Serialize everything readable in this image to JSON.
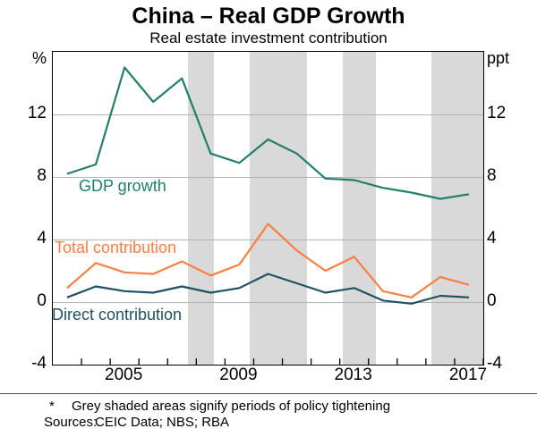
{
  "title": "China – Real GDP Growth",
  "subtitle": "Real estate investment contribution",
  "left_axis_unit": "%",
  "right_axis_unit": "ppt",
  "footnote": {
    "marker": "*",
    "text": "Grey shaded areas signify periods of policy tightening"
  },
  "sources": {
    "label": "Sources:",
    "text": "CEIC Data; NBS; RBA"
  },
  "chart_data": {
    "type": "line",
    "x": [
      2003,
      2004,
      2005,
      2006,
      2007,
      2008,
      2009,
      2010,
      2011,
      2012,
      2013,
      2014,
      2015,
      2016,
      2017
    ],
    "series": [
      {
        "name": "GDP growth",
        "color": "#207e6a",
        "values": [
          8.2,
          8.8,
          15.0,
          12.8,
          14.3,
          9.5,
          8.9,
          10.4,
          9.5,
          7.9,
          7.8,
          7.3,
          7.0,
          6.6,
          6.9
        ],
        "label": {
          "x": 29,
          "y": 140
        }
      },
      {
        "name": "Total contribution",
        "color": "#fb7e42",
        "values": [
          0.9,
          2.5,
          1.9,
          1.8,
          2.6,
          1.7,
          2.4,
          5.0,
          3.3,
          2.0,
          2.9,
          0.7,
          0.3,
          1.6,
          1.1
        ],
        "label": {
          "x": 2,
          "y": 209
        }
      },
      {
        "name": "Direct contribution",
        "color": "#234f63",
        "values": [
          0.3,
          1.0,
          0.7,
          0.6,
          1.0,
          0.6,
          0.9,
          1.8,
          1.2,
          0.6,
          0.9,
          0.1,
          -0.1,
          0.4,
          0.3
        ],
        "label": {
          "x": -1,
          "y": 284
        }
      }
    ],
    "x_range": [
      2002.5,
      2017.5
    ],
    "ylim": [
      -4,
      16
    ],
    "yticks": [
      -4,
      0,
      4,
      8,
      12
    ],
    "gridlines": [
      0,
      4,
      8,
      12
    ],
    "xtick_labels": [
      2005,
      2009,
      2013,
      2017
    ],
    "x_minor_ticks": [
      2003.5,
      2004.5,
      2005.5,
      2006.5,
      2007.5,
      2008.5,
      2009.5,
      2010.5,
      2011.5,
      2012.5,
      2013.5,
      2014.5,
      2015.5,
      2016.5,
      2017.5
    ],
    "shaded_bands": [
      {
        "from": 2007.2,
        "to": 2008.1
      },
      {
        "from": 2009.35,
        "to": 2011.35
      },
      {
        "from": 2012.6,
        "to": 2013.75
      },
      {
        "from": 2015.7,
        "to": 2017.5
      }
    ],
    "band_color": "#d9d9d9",
    "gridline_color": "#b3b3b3",
    "legend_position": "inline-labels",
    "grid": true
  }
}
